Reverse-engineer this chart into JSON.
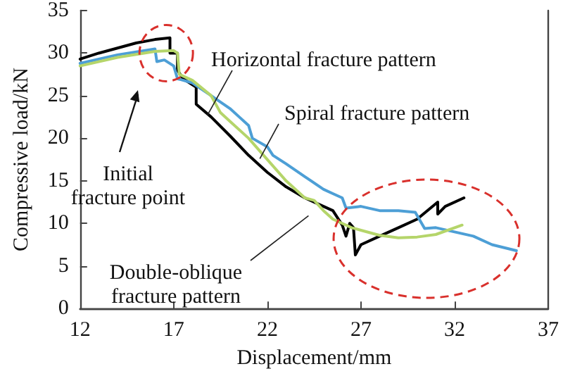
{
  "chart_data": {
    "type": "line",
    "xlabel": "Displacement/mm",
    "ylabel": "Compressive load/kN",
    "xlim": [
      12,
      37
    ],
    "xticks": [
      12,
      17,
      22,
      27,
      32,
      37
    ],
    "ylim": [
      0,
      35
    ],
    "yticks": [
      0,
      5,
      10,
      15,
      20,
      25,
      30,
      35
    ],
    "grid": false,
    "legend": false,
    "marker": "none",
    "line_style": "solid",
    "annotations": [
      "Initial fracture point"
    ],
    "series": [
      {
        "name": "Horizontal fracture pattern",
        "color": "#000000",
        "x": [
          12,
          13,
          14,
          15,
          16,
          16.8,
          16.8,
          17.2,
          17.2,
          17.5,
          18.2,
          18.2,
          19,
          20,
          21,
          22,
          23,
          24,
          25,
          25.5,
          26,
          26.2,
          26.4,
          26.6,
          26.7,
          27,
          28,
          29,
          30,
          31.1,
          31.1,
          31.5,
          32.5
        ],
        "values": [
          29.3,
          30,
          30.6,
          31.2,
          31.6,
          31.8,
          30,
          30,
          28,
          27,
          26,
          24,
          22.5,
          20.3,
          18,
          16,
          14.3,
          13,
          12,
          11.5,
          9.8,
          8.5,
          10,
          9.5,
          6.3,
          7.5,
          8.5,
          9.5,
          10.5,
          12.5,
          11.1,
          12,
          13
        ]
      },
      {
        "name": "Spiral fracture pattern",
        "color": "#4d9fd6",
        "x": [
          12,
          14,
          16,
          16.1,
          16.5,
          17,
          17.2,
          18,
          19,
          20,
          20.5,
          21,
          21.2,
          22,
          22.3,
          23,
          24,
          25,
          25.5,
          26,
          26.2,
          27,
          28,
          29,
          29.9,
          30.4,
          31,
          32,
          33,
          34,
          35.3
        ],
        "values": [
          28.8,
          29.8,
          30.5,
          29,
          29.2,
          28.5,
          27,
          26.5,
          25,
          23.5,
          22.5,
          21.5,
          20,
          19,
          18,
          17,
          15.5,
          14,
          13.5,
          13,
          11.8,
          12,
          11.5,
          11.5,
          11.3,
          9.4,
          9.5,
          9,
          8.5,
          7.5,
          6.8
        ]
      },
      {
        "name": "Double-oblique fracture pattern",
        "color": "#b5d56a",
        "x": [
          12,
          14,
          16,
          17,
          17.2,
          17.3,
          18,
          19,
          19.5,
          20,
          21,
          22,
          23,
          24,
          24.5,
          25,
          25.5,
          26,
          26.5,
          27,
          28,
          29,
          30,
          31,
          32.4
        ],
        "values": [
          28.5,
          29.5,
          30.2,
          30.3,
          30,
          27.5,
          26.8,
          25,
          23,
          22,
          20,
          17.5,
          15,
          13,
          12.7,
          11.5,
          10.5,
          10,
          9.5,
          9.2,
          8.6,
          8.3,
          8.4,
          8.7,
          9.8
        ]
      }
    ]
  }
}
